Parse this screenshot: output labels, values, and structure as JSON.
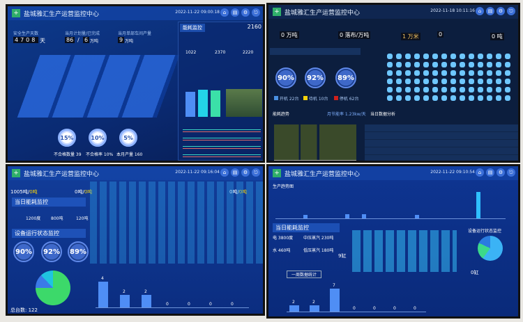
{
  "title": "盐城雅汇生产运营监控中心",
  "header_icons": [
    "home-icon",
    "report-icon",
    "settings-icon",
    "exit-icon"
  ],
  "screen1": {
    "date": "2022-11-22 09:00:18",
    "safe_days_label": "安全生产天数",
    "safe_days": "4708",
    "days_unit": "天",
    "plan_label": "当月计划量/已完成",
    "plan": "86",
    "done": "6",
    "plan_unit": "万吨",
    "workshop_label": "当月单部车间产量",
    "workshop": "9",
    "workshop_unit": "万吨",
    "energy_title": "能耗监控",
    "energy_total": "2160",
    "energy_values": [
      "1022",
      "2370",
      "2220"
    ],
    "rings": [
      {
        "value": "15%",
        "label": "不合格数量 39"
      },
      {
        "value": "10%",
        "label": "不合格率 10%"
      },
      {
        "value": "5%",
        "label": "本月产量 160"
      }
    ],
    "bars_pct": [
      90,
      97,
      94
    ]
  },
  "screen2": {
    "date": "2022-11-18 10:11:16",
    "stats": [
      {
        "value": "0",
        "unit": "万吨"
      },
      {
        "value": "0",
        "unit": "落布/万吨"
      },
      {
        "value": "1",
        "unit": "万米"
      },
      {
        "value": "0",
        "unit": ""
      },
      {
        "value": "0",
        "unit": "吨"
      }
    ],
    "gauges": [
      "90%",
      "92%",
      "89%"
    ],
    "legend": [
      {
        "label": "开机 22台",
        "color": "#4a90e2"
      },
      {
        "label": "待机 10台",
        "color": "#f5d20a"
      },
      {
        "label": "停机 62台",
        "color": "#d0201b"
      }
    ],
    "trend_title": "能耗趋势",
    "trend_note": "月节能率 1.23kw/天",
    "table_title": "当日数据分析"
  },
  "screen3": {
    "date": "2022-11-22 09:16:04",
    "stat1": {
      "a": "1005吨/",
      "b": "0吨"
    },
    "stat2": {
      "a": "0吨/",
      "b": "0吨"
    },
    "stat3": {
      "a": "0吨/",
      "b": "0吨"
    },
    "energy_title": "当日能耗监控",
    "energy_row": [
      "1200度",
      "800吨",
      "120吨"
    ],
    "status_title": "设备运行状态监控",
    "gauges": [
      "90%",
      "92%",
      "89%"
    ],
    "total_label": "总台数:",
    "total": "122",
    "bars": {
      "values": [
        4,
        2,
        2,
        0,
        0,
        0,
        0
      ],
      "ymax": 4
    }
  },
  "screen4": {
    "date": "2022-11-22 09:10:54",
    "trend_title": "生产趋势图",
    "energy_title": "当日能耗监控",
    "energy": [
      "电 3800度",
      "中压蒸汽 230吨",
      "水 460吨",
      "低压蒸汽 180吨"
    ],
    "vats": "9缸",
    "status_title": "设备运行状态监控",
    "zero_vats": "0缸",
    "box_title": "一周数据统计",
    "bars": {
      "values": [
        2,
        2,
        7,
        0,
        0,
        0,
        0
      ],
      "ymax": 7
    }
  }
}
